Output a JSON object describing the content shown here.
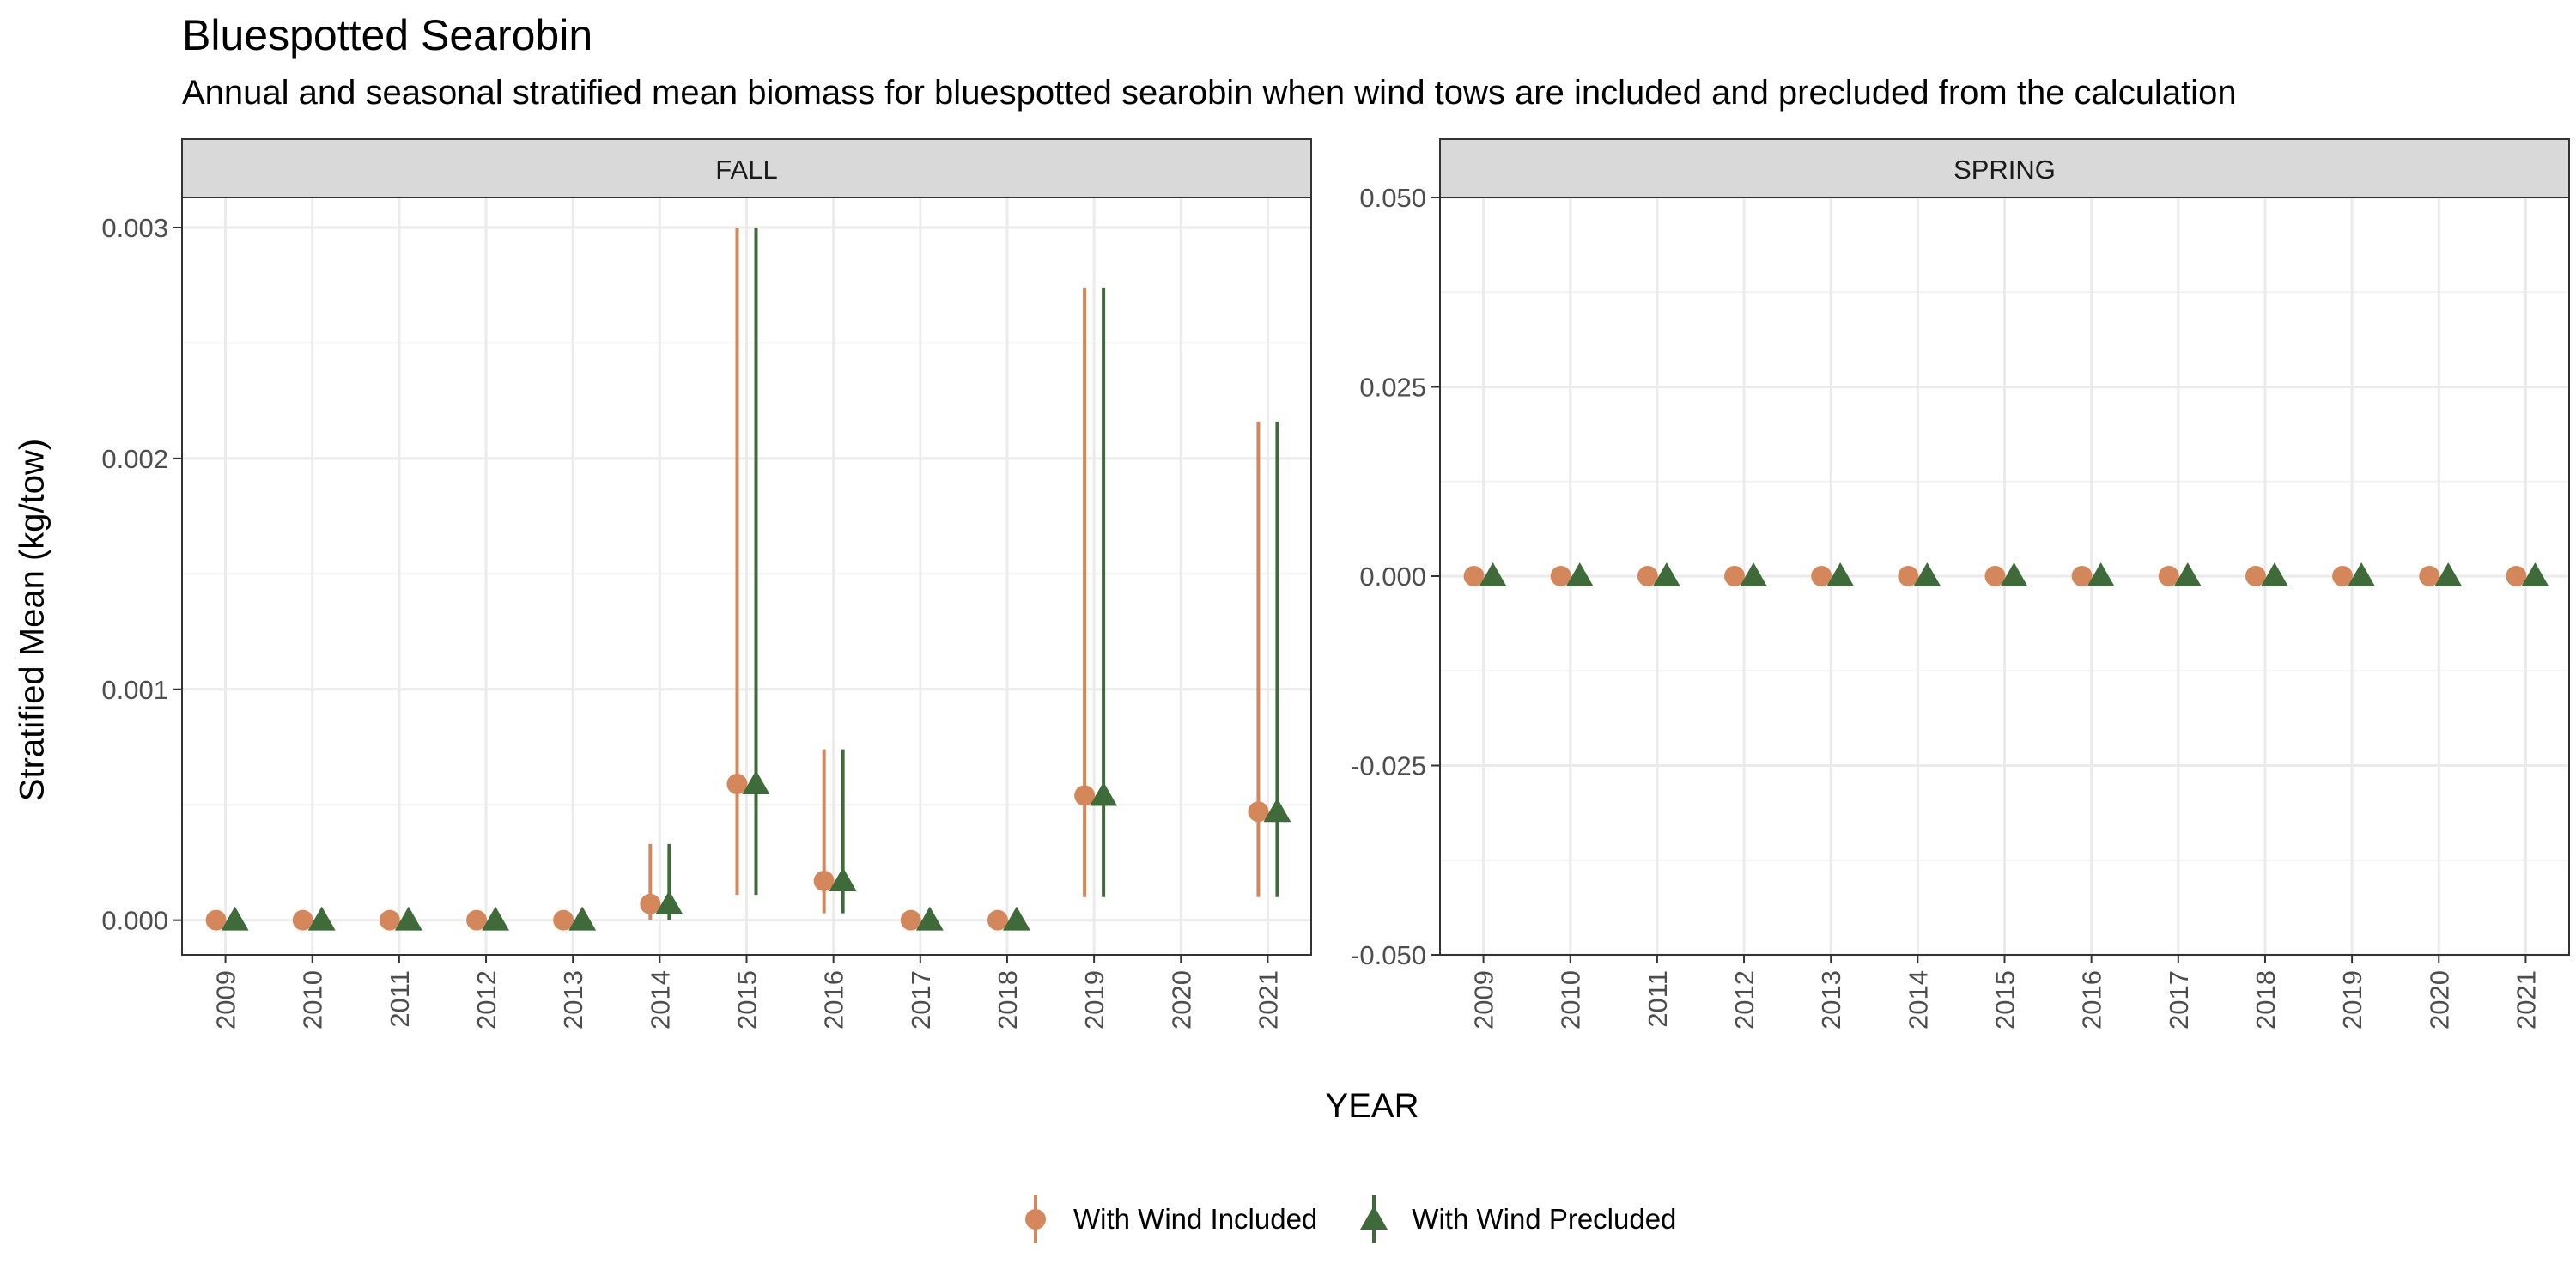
{
  "title": "Bluespotted Searobin",
  "subtitle": "Annual and seasonal stratified mean biomass for bluespotted searobin when wind tows are included and precluded from the calculation",
  "colors": {
    "included": "#D4875A",
    "precluded": "#3F6B3A",
    "strip_bg": "#D9D9D9",
    "grid": "#EBEBEB",
    "panel_border": "#333333"
  },
  "legend": {
    "included_label": "With Wind Included",
    "precluded_label": "With Wind Precluded"
  },
  "chart_data": {
    "type": "scatter",
    "xlabel": "YEAR",
    "ylabel": "Stratified Mean (kg/tow)",
    "legend_position": "bottom",
    "grid": true,
    "categories": [
      "2009",
      "2010",
      "2011",
      "2012",
      "2013",
      "2014",
      "2015",
      "2016",
      "2017",
      "2018",
      "2019",
      "2020",
      "2021"
    ],
    "panels": [
      {
        "name": "FALL",
        "ylim": [
          -0.00015,
          0.00313
        ],
        "yticks": [
          0,
          0.001,
          0.002,
          0.003
        ],
        "ytick_labels": [
          "0.000",
          "0.001",
          "0.002",
          "0.003"
        ],
        "series": [
          {
            "name": "With Wind Included",
            "marker": "circle",
            "values": [
              0,
              0,
              0,
              0,
              0,
              7e-05,
              0.00059,
              0.00017,
              0,
              0,
              0.00054,
              null,
              0.00047
            ],
            "lower": [
              null,
              null,
              null,
              null,
              null,
              0.0,
              0.00011,
              3e-05,
              null,
              null,
              0.0001,
              null,
              0.0001
            ],
            "upper": [
              null,
              null,
              null,
              null,
              null,
              0.00033,
              0.003,
              0.00074,
              null,
              null,
              0.00274,
              null,
              0.00216
            ]
          },
          {
            "name": "With Wind Precluded",
            "marker": "triangle",
            "values": [
              0,
              0,
              0,
              0,
              0,
              7e-05,
              0.00059,
              0.00017,
              0,
              0,
              0.00054,
              null,
              0.00047
            ],
            "lower": [
              null,
              null,
              null,
              null,
              null,
              0.0,
              0.00011,
              3e-05,
              null,
              null,
              0.0001,
              null,
              0.0001
            ],
            "upper": [
              null,
              null,
              null,
              null,
              null,
              0.00033,
              0.003,
              0.00074,
              null,
              null,
              0.00274,
              null,
              0.00216
            ]
          }
        ]
      },
      {
        "name": "SPRING",
        "ylim": [
          -0.05,
          0.05
        ],
        "yticks": [
          -0.05,
          -0.025,
          0,
          0.025,
          0.05
        ],
        "ytick_labels": [
          "-0.050",
          "-0.025",
          "0.000",
          "0.025",
          "0.050"
        ],
        "series": [
          {
            "name": "With Wind Included",
            "marker": "circle",
            "values": [
              0,
              0,
              0,
              0,
              0,
              0,
              0,
              0,
              0,
              0,
              0,
              0,
              0
            ],
            "lower": [
              null,
              null,
              null,
              null,
              null,
              null,
              null,
              null,
              null,
              null,
              null,
              null,
              null
            ],
            "upper": [
              null,
              null,
              null,
              null,
              null,
              null,
              null,
              null,
              null,
              null,
              null,
              null,
              null
            ]
          },
          {
            "name": "With Wind Precluded",
            "marker": "triangle",
            "values": [
              0,
              0,
              0,
              0,
              0,
              0,
              0,
              0,
              0,
              0,
              0,
              0,
              0
            ],
            "lower": [
              null,
              null,
              null,
              null,
              null,
              null,
              null,
              null,
              null,
              null,
              null,
              null,
              null
            ],
            "upper": [
              null,
              null,
              null,
              null,
              null,
              null,
              null,
              null,
              null,
              null,
              null,
              null,
              null
            ]
          }
        ]
      }
    ]
  }
}
